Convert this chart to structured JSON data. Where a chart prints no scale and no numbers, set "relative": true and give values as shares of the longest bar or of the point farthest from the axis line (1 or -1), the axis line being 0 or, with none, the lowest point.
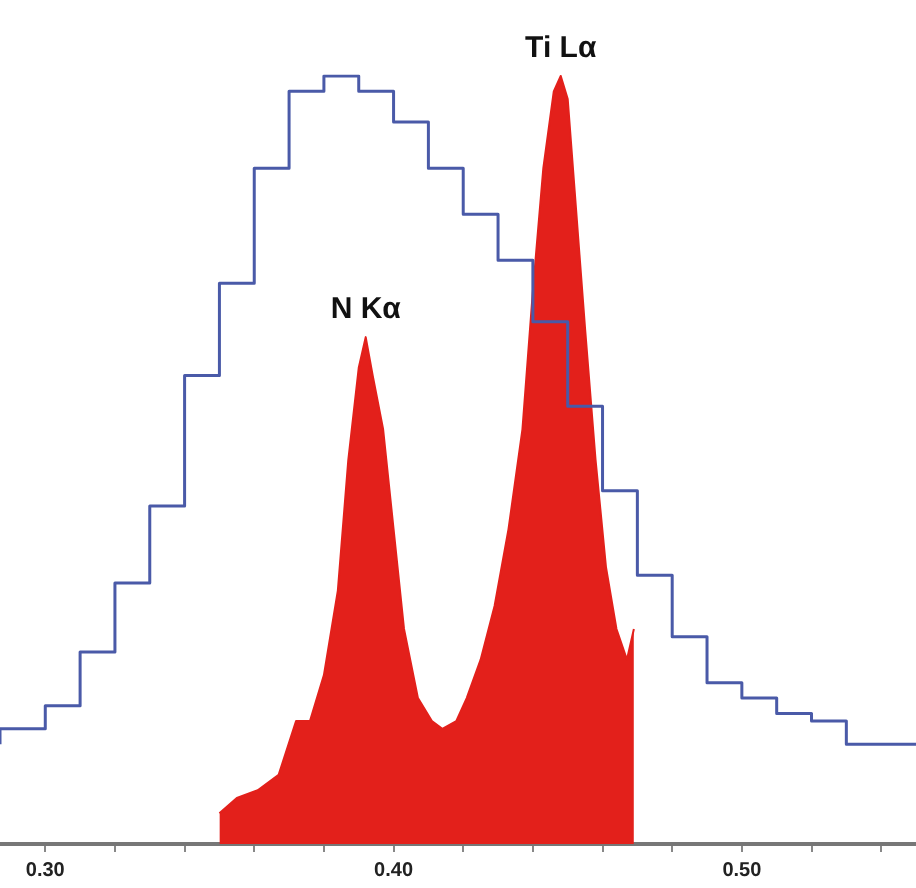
{
  "chart_data": {
    "type": "step",
    "relative": true,
    "legend": false,
    "grid": false,
    "xlim": [
      0.287,
      0.55
    ],
    "xticks": [
      {
        "value": 0.3,
        "label": "0.30"
      },
      {
        "value": 0.32,
        "label": null
      },
      {
        "value": 0.34,
        "label": null
      },
      {
        "value": 0.36,
        "label": null
      },
      {
        "value": 0.38,
        "label": null
      },
      {
        "value": 0.4,
        "label": "0.40"
      },
      {
        "value": 0.42,
        "label": null
      },
      {
        "value": 0.44,
        "label": null
      },
      {
        "value": 0.46,
        "label": null
      },
      {
        "value": 0.48,
        "label": null
      },
      {
        "value": 0.5,
        "label": "0.50"
      },
      {
        "value": 0.52,
        "label": null
      },
      {
        "value": 0.54,
        "label": null
      }
    ],
    "series": [
      {
        "color": "#4a5aa8",
        "x": [
          0.287,
          0.3,
          0.31,
          0.32,
          0.33,
          0.34,
          0.35,
          0.36,
          0.37,
          0.38,
          0.39,
          0.4,
          0.41,
          0.42,
          0.43,
          0.44,
          0.45,
          0.46,
          0.47,
          0.48,
          0.49,
          0.5,
          0.51,
          0.52,
          0.53,
          0.54,
          0.55
        ],
        "values": [
          0.13,
          0.15,
          0.18,
          0.25,
          0.34,
          0.44,
          0.61,
          0.73,
          0.88,
          0.98,
          1.0,
          0.98,
          0.94,
          0.88,
          0.82,
          0.76,
          0.68,
          0.57,
          0.46,
          0.35,
          0.27,
          0.21,
          0.19,
          0.17,
          0.16,
          0.13,
          0.13
        ]
      },
      {
        "type": "area",
        "color": "#e3201b",
        "x": [
          0.35,
          0.355,
          0.361,
          0.367,
          0.372,
          0.376,
          0.38,
          0.384,
          0.387,
          0.39,
          0.392,
          0.394,
          0.397,
          0.4,
          0.403,
          0.407,
          0.411,
          0.414,
          0.418,
          0.421,
          0.425,
          0.429,
          0.433,
          0.437,
          0.44,
          0.443,
          0.446,
          0.448,
          0.45,
          0.452,
          0.455,
          0.458,
          0.461,
          0.464,
          0.467,
          0.469
        ],
        "values": [
          0.04,
          0.06,
          0.07,
          0.09,
          0.16,
          0.16,
          0.22,
          0.33,
          0.5,
          0.62,
          0.66,
          0.61,
          0.54,
          0.41,
          0.28,
          0.19,
          0.16,
          0.15,
          0.16,
          0.19,
          0.24,
          0.31,
          0.41,
          0.54,
          0.72,
          0.88,
          0.98,
          1.0,
          0.97,
          0.85,
          0.67,
          0.5,
          0.36,
          0.28,
          0.24,
          0.28
        ]
      }
    ],
    "annotations": [
      {
        "text": "N Kα",
        "x": 0.392,
        "y": 0.66
      },
      {
        "text": "Ti Lα",
        "x": 0.448,
        "y": 1.0
      }
    ]
  }
}
